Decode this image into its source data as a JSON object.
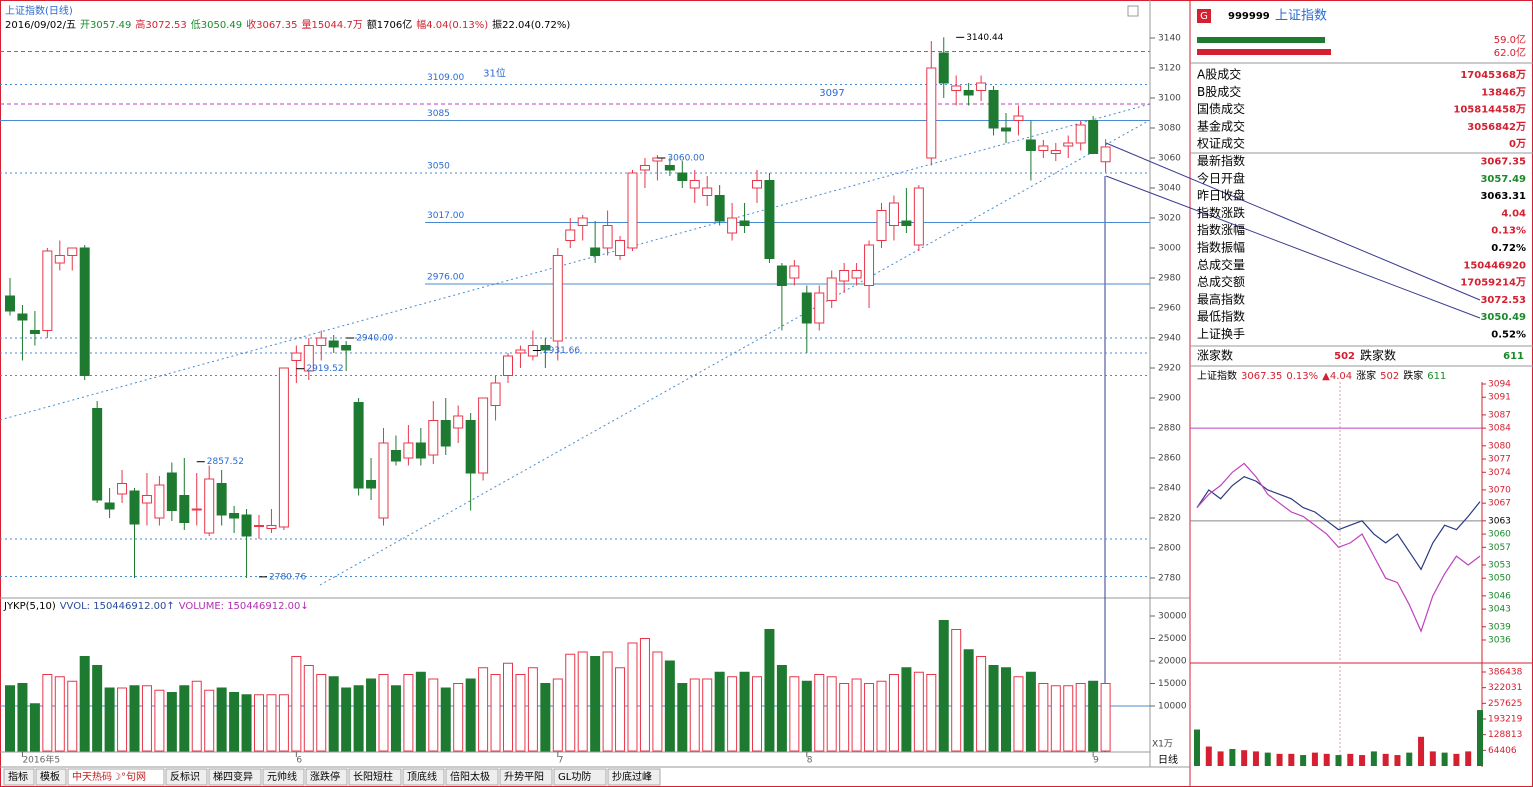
{
  "header": {
    "title": "上证指数(日线)",
    "items": [
      {
        "text": "2016/09/02/五",
        "color": "#000"
      },
      {
        "text": "开3057.49",
        "color": "#1a8a2a"
      },
      {
        "text": "高3072.53",
        "color": "#d42030"
      },
      {
        "text": "低3050.49",
        "color": "#1a8a2a"
      },
      {
        "text": "收3067.35",
        "color": "#d42030"
      },
      {
        "text": "量15044.7万",
        "color": "#d42030"
      },
      {
        "text": "额1706亿",
        "color": "#000"
      },
      {
        "text": "幅4.04(0.13%)",
        "color": "#d42030"
      },
      {
        "text": "振22.04(0.72%)",
        "color": "#000"
      }
    ]
  },
  "kline": {
    "ylim": [
      2780,
      3140
    ],
    "yticks": [
      3140,
      3120,
      3100,
      3080,
      3060,
      3040,
      3020,
      3000,
      2980,
      2960,
      2940,
      2920,
      2900,
      2880,
      2860,
      2840,
      2820,
      2800,
      2780
    ],
    "up_color": "#e8374b",
    "down_color": "#1e7a30",
    "candles": [
      [
        2968,
        2980,
        2955,
        2958
      ],
      [
        2956,
        2962,
        2925,
        2952
      ],
      [
        2945,
        2958,
        2935,
        2943
      ],
      [
        2945,
        3000,
        2940,
        2998
      ],
      [
        2990,
        3005,
        2985,
        2995
      ],
      [
        2995,
        3000,
        2985,
        3000
      ],
      [
        3000,
        3002,
        2912,
        2915
      ],
      [
        2893,
        2898,
        2830,
        2832
      ],
      [
        2830,
        2840,
        2820,
        2826
      ],
      [
        2836,
        2852,
        2830,
        2843
      ],
      [
        2838,
        2840,
        2780,
        2816
      ],
      [
        2830,
        2850,
        2815,
        2835
      ],
      [
        2820,
        2848,
        2815,
        2842
      ],
      [
        2850,
        2857,
        2818,
        2825
      ],
      [
        2835,
        2860,
        2812,
        2817
      ],
      [
        2826,
        2850,
        2815,
        2826
      ],
      [
        2810,
        2855,
        2808,
        2846
      ],
      [
        2843,
        2852,
        2815,
        2822
      ],
      [
        2823,
        2828,
        2810,
        2820
      ],
      [
        2822,
        2826,
        2780,
        2808
      ],
      [
        2815,
        2822,
        2806,
        2815
      ],
      [
        2813,
        2826,
        2810,
        2815
      ],
      [
        2814,
        2920,
        2812,
        2920
      ],
      [
        2925,
        2935,
        2910,
        2930
      ],
      [
        2918,
        2940,
        2912,
        2935
      ],
      [
        2935,
        2945,
        2925,
        2940
      ],
      [
        2938,
        2942,
        2930,
        2934
      ],
      [
        2935,
        2938,
        2918,
        2932
      ],
      [
        2897,
        2900,
        2835,
        2840
      ],
      [
        2845,
        2860,
        2832,
        2840
      ],
      [
        2820,
        2880,
        2815,
        2870
      ],
      [
        2865,
        2875,
        2855,
        2858
      ],
      [
        2860,
        2882,
        2855,
        2870
      ],
      [
        2870,
        2880,
        2855,
        2860
      ],
      [
        2862,
        2898,
        2856,
        2885
      ],
      [
        2885,
        2900,
        2862,
        2868
      ],
      [
        2880,
        2895,
        2870,
        2888
      ],
      [
        2885,
        2890,
        2825,
        2850
      ],
      [
        2850,
        2900,
        2845,
        2900
      ],
      [
        2895,
        2915,
        2885,
        2910
      ],
      [
        2915,
        2930,
        2910,
        2928
      ],
      [
        2930,
        2935,
        2920,
        2932
      ],
      [
        2928,
        2945,
        2925,
        2935
      ],
      [
        2935,
        2940,
        2920,
        2932
      ],
      [
        2938,
        3000,
        2925,
        2995
      ],
      [
        3005,
        3020,
        3000,
        3012
      ],
      [
        3015,
        3022,
        3005,
        3020
      ],
      [
        3000,
        3018,
        2990,
        2995
      ],
      [
        3000,
        3025,
        2995,
        3015
      ],
      [
        2995,
        3008,
        2992,
        3005
      ],
      [
        3000,
        3052,
        2998,
        3050
      ],
      [
        3052,
        3060,
        3040,
        3055
      ],
      [
        3058,
        3062,
        3045,
        3060
      ],
      [
        3055,
        3060,
        3048,
        3052
      ],
      [
        3050,
        3058,
        3040,
        3045
      ],
      [
        3040,
        3052,
        3030,
        3045
      ],
      [
        3035,
        3048,
        3028,
        3040
      ],
      [
        3035,
        3042,
        3015,
        3018
      ],
      [
        3010,
        3030,
        3005,
        3020
      ],
      [
        3018,
        3030,
        3010,
        3015
      ],
      [
        3040,
        3052,
        3030,
        3045
      ],
      [
        3045,
        3050,
        2990,
        2993
      ],
      [
        2988,
        2990,
        2945,
        2975
      ],
      [
        2980,
        2992,
        2975,
        2988
      ],
      [
        2970,
        2975,
        2930,
        2950
      ],
      [
        2950,
        2975,
        2945,
        2970
      ],
      [
        2965,
        2985,
        2960,
        2980
      ],
      [
        2978,
        2990,
        2970,
        2985
      ],
      [
        2980,
        2990,
        2975,
        2985
      ],
      [
        2975,
        3005,
        2960,
        3002
      ],
      [
        3005,
        3030,
        3000,
        3025
      ],
      [
        3015,
        3035,
        3005,
        3030
      ],
      [
        3018,
        3040,
        3010,
        3015
      ],
      [
        3002,
        3042,
        2998,
        3040
      ],
      [
        3060,
        3138,
        3055,
        3120
      ],
      [
        3130,
        3140.44,
        3100,
        3110
      ],
      [
        3105,
        3115,
        3095,
        3108
      ],
      [
        3105,
        3110,
        3095,
        3102
      ],
      [
        3105,
        3115,
        3098,
        3110
      ],
      [
        3105,
        3108,
        3075,
        3080
      ],
      [
        3080,
        3090,
        3070,
        3078
      ],
      [
        3085,
        3095,
        3075,
        3088
      ],
      [
        3072,
        3085,
        3045,
        3065
      ],
      [
        3065,
        3072,
        3060,
        3068
      ],
      [
        3063,
        3070,
        3058,
        3065
      ],
      [
        3068,
        3075,
        3060,
        3070
      ],
      [
        3070,
        3085,
        3065,
        3082
      ],
      [
        3085,
        3088,
        3063,
        3063
      ],
      [
        3057.49,
        3072.53,
        3050.49,
        3067.35
      ]
    ],
    "levels": [
      {
        "value": 3131,
        "style": "magenta"
      },
      {
        "value": 3109,
        "label": "3109.00",
        "style": "dot"
      },
      {
        "value": 3096,
        "style": "magenta"
      },
      {
        "value": 3085,
        "label": "3085",
        "style": "solid"
      },
      {
        "value": 3050,
        "label": "3050",
        "style": "dot"
      },
      {
        "value": 3017,
        "label": "3017.00",
        "style": "solid"
      },
      {
        "value": 2976,
        "label": "2976.00",
        "style": "solid"
      },
      {
        "value": 2940,
        "style": "dot"
      },
      {
        "value": 2930,
        "style": "dot"
      },
      {
        "value": 2915,
        "style": "dot"
      },
      {
        "value": 2806,
        "style": "dot"
      },
      {
        "value": 2781,
        "style": "dot"
      }
    ],
    "annotations": [
      {
        "label": "3140.44",
        "index": 76,
        "value": 3140.44
      },
      {
        "label": "2780.76",
        "index": 20,
        "value": 2780.76
      },
      {
        "label": "3060.00",
        "index": 52,
        "value": 3060
      },
      {
        "label": "2940.00",
        "index": 27,
        "value": 2940
      },
      {
        "label": "2919.52",
        "index": 23,
        "value": 2919.52
      },
      {
        "label": "2931.66",
        "index": 42,
        "value": 2931.66
      },
      {
        "label": "2857.52",
        "index": 15,
        "value": 2857.52
      }
    ],
    "notes": [
      {
        "label": "31位",
        "index": 38,
        "value": 3111
      },
      {
        "label": "3097",
        "index": 65,
        "value": 3098
      }
    ],
    "months": [
      {
        "index": 1,
        "label": "2016年5"
      },
      {
        "index": 23,
        "label": "6"
      },
      {
        "index": 44,
        "label": "7"
      },
      {
        "index": 64,
        "label": "8"
      },
      {
        "index": 87,
        "label": "9"
      }
    ],
    "period": "日线"
  },
  "volume": {
    "header": [
      {
        "text": "JYKP(5,10)",
        "color": "#000"
      },
      {
        "text": "VVOL: 150446912.00↑",
        "color": "#2a4a9a"
      },
      {
        "text": "VOLUME: 150446912.00↓",
        "color": "#b030b0"
      }
    ],
    "ylim": [
      0,
      30000
    ],
    "yticks": [
      30000,
      25000,
      20000,
      15000,
      10000
    ],
    "unit": "X1万",
    "values": [
      14500,
      15000,
      10500,
      17000,
      16500,
      15500,
      21000,
      19000,
      14000,
      14000,
      14500,
      14500,
      13500,
      13000,
      14500,
      15500,
      13500,
      14000,
      13000,
      12500,
      12500,
      12500,
      12500,
      21000,
      19000,
      17000,
      16500,
      14000,
      14500,
      16000,
      17000,
      14500,
      17000,
      17500,
      16000,
      14000,
      15000,
      16000,
      18500,
      17000,
      19500,
      17000,
      18500,
      15000,
      16000,
      21500,
      22000,
      21000,
      22000,
      18500,
      24000,
      25000,
      22000,
      20000,
      15000,
      16000,
      16000,
      17500,
      16500,
      17500,
      16500,
      27000,
      19000,
      16500,
      15500,
      17000,
      16500,
      15000,
      16000,
      15000,
      15500,
      17000,
      18500,
      17500,
      17000,
      29000,
      27000,
      22500,
      21000,
      19000,
      18500,
      16500,
      17500,
      15000,
      14500,
      14500,
      15000,
      15500,
      15000
    ]
  },
  "tabs": [
    "指标",
    "模板",
    "中天热码☽°句网",
    "反标识",
    "梯四变异",
    "元帅线",
    "涨跌停",
    "长阳短柱",
    "顶底线",
    "倍阳太极",
    "升势平阳",
    "GL功防",
    "抄底过峰"
  ],
  "panel": {
    "badge": "G",
    "code": "999999",
    "name": "上证指数",
    "bars": [
      "59.0亿",
      "62.0亿"
    ],
    "rows": [
      [
        "A股成交",
        "17045368万",
        "#d42030"
      ],
      [
        "B股成交",
        "13846万",
        "#d42030"
      ],
      [
        "国债成交",
        "105814458万",
        "#d42030"
      ],
      [
        "基金成交",
        "3056842万",
        "#d42030"
      ],
      [
        "权证成交",
        "0万",
        "#d42030"
      ],
      [
        "最新指数",
        "3067.35",
        "#d42030"
      ],
      [
        "今日开盘",
        "3057.49",
        "#1a8a2a"
      ],
      [
        "昨日收盘",
        "3063.31",
        "#000"
      ],
      [
        "指数涨跌",
        "4.04",
        "#d42030"
      ],
      [
        "指数涨幅",
        "0.13%",
        "#d42030"
      ],
      [
        "指数振幅",
        "0.72%",
        "#000"
      ],
      [
        "总成交量",
        "150446920",
        "#d42030"
      ],
      [
        "总成交额",
        "17059214万",
        "#d42030"
      ],
      [
        "最高指数",
        "3072.53",
        "#d42030"
      ],
      [
        "最低指数",
        "3050.49",
        "#1a8a2a"
      ],
      [
        "上证换手",
        "0.52%",
        "#000"
      ]
    ],
    "breadth": [
      "涨家数",
      "502",
      "跌家数",
      "611"
    ]
  },
  "intraday": {
    "header": [
      "上证指数",
      "3067.35",
      "0.13%",
      "▲4.04",
      "涨家",
      "502",
      "跌家",
      "611"
    ],
    "ylim": [
      3036,
      3094
    ],
    "yticks": [
      3094,
      3091,
      3087,
      3084,
      3080,
      3077,
      3074,
      3070,
      3067,
      3063,
      3060,
      3057,
      3053,
      3050,
      3046,
      3043,
      3039,
      3036
    ],
    "pre_close": 3063,
    "highlight": 3084,
    "series": [
      {
        "color": "#2a3a80",
        "values": [
          3066,
          3070,
          3068,
          3071,
          3073,
          3072,
          3070,
          3069,
          3068,
          3066,
          3065,
          3063,
          3061,
          3062,
          3063,
          3060,
          3058,
          3060,
          3056,
          3052,
          3058,
          3062,
          3061,
          3064,
          3067.35
        ]
      },
      {
        "color": "#c040c0",
        "values": [
          3066,
          3069,
          3071,
          3074,
          3076,
          3073,
          3069,
          3067,
          3065,
          3064,
          3062,
          3060,
          3057,
          3058,
          3060,
          3055,
          3050,
          3049,
          3044,
          3038,
          3046,
          3051,
          3055,
          3053,
          3055
        ]
      }
    ],
    "vol_ylim": [
      0,
      386438
    ],
    "vol_yticks": [
      386438,
      322031,
      257625,
      193219,
      128813,
      64406
    ],
    "volumes": [
      150000,
      80000,
      60000,
      70000,
      65000,
      60000,
      55000,
      50000,
      50000,
      45000,
      55000,
      50000,
      45000,
      50000,
      45000,
      60000,
      50000,
      45000,
      55000,
      120000,
      60000,
      55000,
      50000,
      60000,
      230000
    ]
  }
}
